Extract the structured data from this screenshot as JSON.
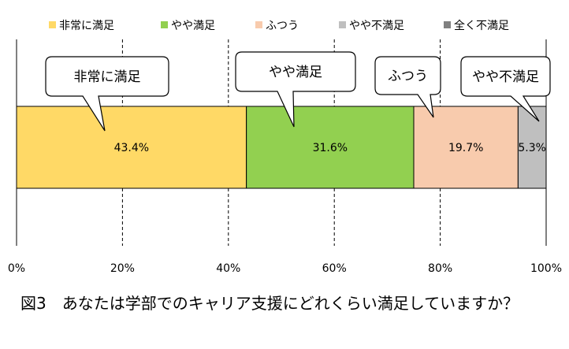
{
  "chart_data": {
    "type": "bar",
    "orientation": "horizontal-stacked-percent",
    "legend_position": "top",
    "grid": true,
    "xlim": [
      0,
      100
    ],
    "x_ticks": [
      "0%",
      "20%",
      "40%",
      "60%",
      "80%",
      "100%"
    ],
    "series": [
      {
        "name": "非常に満足",
        "value": 43.4,
        "value_label": "43.4%",
        "color": "#FFD966",
        "callout": "非常に満足"
      },
      {
        "name": "やや満足",
        "value": 31.6,
        "value_label": "31.6%",
        "color": "#92D050",
        "callout": "やや満足"
      },
      {
        "name": "ふつう",
        "value": 19.7,
        "value_label": "19.7%",
        "color": "#F8CBAD",
        "callout": "ふつう"
      },
      {
        "name": "やや不満足",
        "value": 5.3,
        "value_label": "5.3%",
        "color": "#BFBFBF",
        "callout": "やや不満足"
      },
      {
        "name": "全く不満足",
        "value": 0,
        "value_label": "",
        "color": "#808080",
        "callout": ""
      }
    ]
  },
  "caption": "図3　あなたは学部でのキャリア支援にどれくらい満足していますか？"
}
